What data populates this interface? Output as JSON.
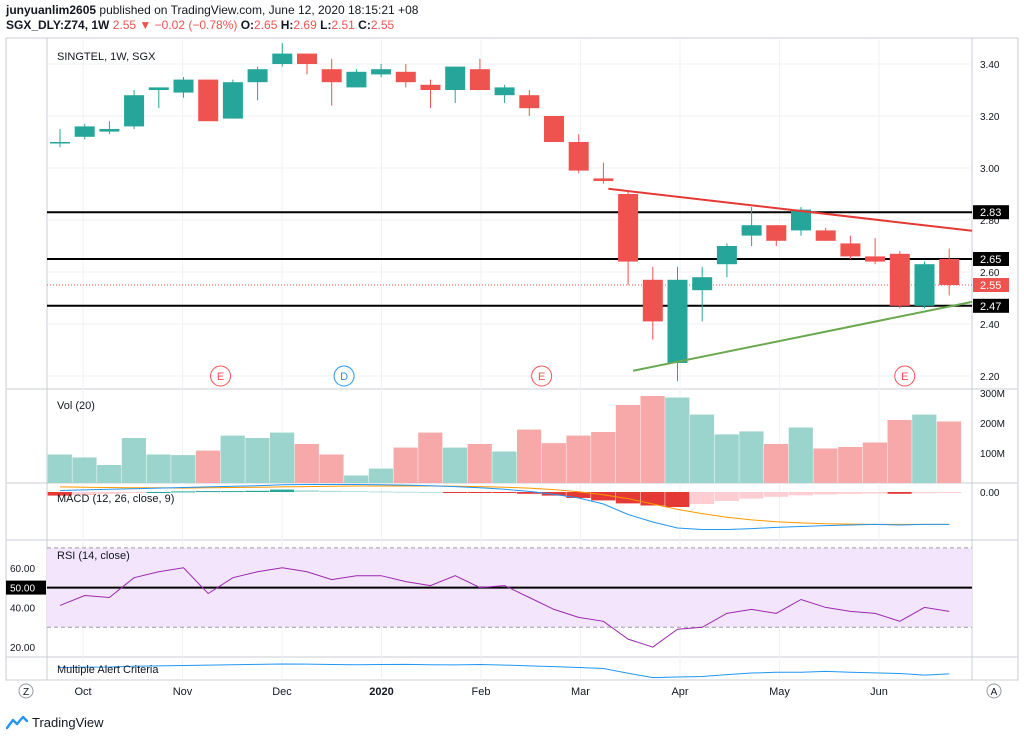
{
  "header": {
    "user": "junyuanlim2605",
    "published_text": "published on TradingView.com, June 12, 2020 18:15:21 +08",
    "symbol": "SGX_DLY:Z74, 1W",
    "last": "2.55",
    "change": "▼ −0.02 (−0.78%)",
    "o_label": "O:",
    "o_value": "2.65",
    "h_label": "H:",
    "h_value": "2.69",
    "l_label": "L:",
    "l_value": "2.51",
    "c_label": "C:",
    "c_value": "2.55"
  },
  "footer": {
    "brand": "TradingView"
  },
  "colors": {
    "up": "#26a69a",
    "down": "#ef5350",
    "up_vol": "#9bd3cd",
    "down_vol": "#f6a9a8",
    "rsi_line": "#9c27b0",
    "rsi_band": "#f3e5fb",
    "macd_line": "#2196f3",
    "signal_line": "#ff9800",
    "support": "#6aa84f",
    "resistance": "#e53935"
  },
  "chart_data": [
    {
      "type": "candlestick",
      "title": "SINGTEL, 1W, SGX",
      "ylim": [
        2.15,
        3.5
      ],
      "yticks": [
        "3.40",
        "3.20",
        "3.00",
        "2.80",
        "2.60",
        "2.40",
        "2.20"
      ],
      "xticks": [
        "Oct",
        "Nov",
        "Dec",
        "2020",
        "Feb",
        "Mar",
        "Apr",
        "May",
        "Jun"
      ],
      "price_labels": [
        {
          "text": "2.83",
          "value": 2.83,
          "style": "black"
        },
        {
          "text": "2.65",
          "value": 2.65,
          "style": "black"
        },
        {
          "text": "2.55",
          "value": 2.55,
          "style": "red"
        },
        {
          "text": "2.47",
          "value": 2.47,
          "style": "black"
        }
      ],
      "horizontal_lines": [
        2.83,
        2.65,
        2.47
      ],
      "current_price": 2.55,
      "trend_lines": [
        {
          "kind": "resistance",
          "from": [
            22.2,
            2.92
          ],
          "to": [
            37.7,
            2.75
          ]
        },
        {
          "kind": "support",
          "from": [
            23.2,
            2.22
          ],
          "to": [
            37.7,
            2.5
          ]
        }
      ],
      "events": [
        {
          "label": "E",
          "x": 6.5,
          "kind": "earnings"
        },
        {
          "label": "D",
          "x": 11.5,
          "kind": "dividend"
        },
        {
          "label": "E",
          "x": 19.5,
          "kind": "earnings"
        },
        {
          "label": "E",
          "x": 34.2,
          "kind": "earnings"
        }
      ],
      "candles": [
        {
          "o": 3.1,
          "h": 3.15,
          "l": 3.08,
          "c": 3.1
        },
        {
          "o": 3.12,
          "h": 3.17,
          "l": 3.11,
          "c": 3.16
        },
        {
          "o": 3.14,
          "h": 3.18,
          "l": 3.13,
          "c": 3.15
        },
        {
          "o": 3.16,
          "h": 3.3,
          "l": 3.15,
          "c": 3.28
        },
        {
          "o": 3.3,
          "h": 3.31,
          "l": 3.23,
          "c": 3.31
        },
        {
          "o": 3.29,
          "h": 3.35,
          "l": 3.27,
          "c": 3.34
        },
        {
          "o": 3.34,
          "h": 3.34,
          "l": 3.18,
          "c": 3.18
        },
        {
          "o": 3.19,
          "h": 3.34,
          "l": 3.19,
          "c": 3.33
        },
        {
          "o": 3.33,
          "h": 3.39,
          "l": 3.26,
          "c": 3.38
        },
        {
          "o": 3.4,
          "h": 3.48,
          "l": 3.39,
          "c": 3.44
        },
        {
          "o": 3.44,
          "h": 3.44,
          "l": 3.36,
          "c": 3.4
        },
        {
          "o": 3.38,
          "h": 3.42,
          "l": 3.24,
          "c": 3.33
        },
        {
          "o": 3.31,
          "h": 3.38,
          "l": 3.31,
          "c": 3.37
        },
        {
          "o": 3.36,
          "h": 3.4,
          "l": 3.35,
          "c": 3.38
        },
        {
          "o": 3.37,
          "h": 3.4,
          "l": 3.31,
          "c": 3.33
        },
        {
          "o": 3.32,
          "h": 3.34,
          "l": 3.23,
          "c": 3.3
        },
        {
          "o": 3.3,
          "h": 3.39,
          "l": 3.25,
          "c": 3.39
        },
        {
          "o": 3.38,
          "h": 3.42,
          "l": 3.3,
          "c": 3.3
        },
        {
          "o": 3.28,
          "h": 3.32,
          "l": 3.25,
          "c": 3.31
        },
        {
          "o": 3.28,
          "h": 3.3,
          "l": 3.2,
          "c": 3.23
        },
        {
          "o": 3.2,
          "h": 3.2,
          "l": 3.1,
          "c": 3.1
        },
        {
          "o": 3.1,
          "h": 3.13,
          "l": 2.98,
          "c": 2.99
        },
        {
          "o": 2.96,
          "h": 3.02,
          "l": 2.94,
          "c": 2.95
        },
        {
          "o": 2.9,
          "h": 2.91,
          "l": 2.55,
          "c": 2.64
        },
        {
          "o": 2.57,
          "h": 2.62,
          "l": 2.34,
          "c": 2.41
        },
        {
          "o": 2.25,
          "h": 2.62,
          "l": 2.18,
          "c": 2.57
        },
        {
          "o": 2.53,
          "h": 2.62,
          "l": 2.41,
          "c": 2.58
        },
        {
          "o": 2.63,
          "h": 2.71,
          "l": 2.58,
          "c": 2.7
        },
        {
          "o": 2.74,
          "h": 2.85,
          "l": 2.7,
          "c": 2.78
        },
        {
          "o": 2.78,
          "h": 2.78,
          "l": 2.7,
          "c": 2.72
        },
        {
          "o": 2.76,
          "h": 2.85,
          "l": 2.74,
          "c": 2.84
        },
        {
          "o": 2.76,
          "h": 2.77,
          "l": 2.72,
          "c": 2.72
        },
        {
          "o": 2.71,
          "h": 2.74,
          "l": 2.65,
          "c": 2.66
        },
        {
          "o": 2.66,
          "h": 2.73,
          "l": 2.63,
          "c": 2.64
        },
        {
          "o": 2.67,
          "h": 2.68,
          "l": 2.46,
          "c": 2.47
        },
        {
          "o": 2.47,
          "h": 2.64,
          "l": 2.46,
          "c": 2.63
        },
        {
          "o": 2.65,
          "h": 2.69,
          "l": 2.51,
          "c": 2.55
        }
      ]
    },
    {
      "type": "bar",
      "title": "Vol (20)",
      "yticks": [
        "300M",
        "200M",
        "100M"
      ],
      "ylim": [
        0,
        300
      ],
      "unit": "M",
      "values": [
        95,
        85,
        60,
        150,
        95,
        93,
        108,
        158,
        150,
        168,
        130,
        95,
        25,
        48,
        118,
        168,
        118,
        130,
        105,
        178,
        133,
        158,
        170,
        260,
        290,
        285,
        228,
        162,
        172,
        130,
        185,
        115,
        120,
        135,
        210,
        228,
        205
      ]
    },
    {
      "type": "line",
      "title": "MACD (12, 26, close, 9)",
      "yticks": [
        "0.00"
      ],
      "ylim": [
        -0.16,
        0.03
      ],
      "histogram": [
        -0.012,
        -0.01,
        -0.006,
        -0.002,
        0.0,
        0.002,
        0.003,
        0.003,
        0.004,
        0.008,
        0.006,
        0.004,
        0.003,
        0.002,
        0.001,
        0.0,
        -0.001,
        -0.001,
        -0.003,
        -0.006,
        -0.012,
        -0.02,
        -0.028,
        -0.038,
        -0.045,
        -0.05,
        -0.04,
        -0.03,
        -0.022,
        -0.016,
        -0.011,
        -0.008,
        -0.006,
        -0.005,
        -0.006,
        -0.004,
        -0.003
      ],
      "macd": [
        0.005,
        0.007,
        0.009,
        0.011,
        0.013,
        0.015,
        0.017,
        0.019,
        0.021,
        0.024,
        0.025,
        0.025,
        0.025,
        0.024,
        0.023,
        0.021,
        0.018,
        0.014,
        0.009,
        0.002,
        -0.008,
        -0.02,
        -0.04,
        -0.075,
        -0.1,
        -0.12,
        -0.125,
        -0.125,
        -0.122,
        -0.118,
        -0.115,
        -0.112,
        -0.11,
        -0.108,
        -0.11,
        -0.108,
        -0.108
      ],
      "signal": [
        0.017,
        0.016,
        0.015,
        0.014,
        0.014,
        0.013,
        0.014,
        0.015,
        0.016,
        0.017,
        0.018,
        0.019,
        0.02,
        0.02,
        0.02,
        0.02,
        0.019,
        0.018,
        0.016,
        0.013,
        0.008,
        0.001,
        -0.009,
        -0.022,
        -0.04,
        -0.058,
        -0.072,
        -0.084,
        -0.093,
        -0.099,
        -0.103,
        -0.106,
        -0.107,
        -0.108,
        -0.108,
        -0.108,
        -0.108
      ]
    },
    {
      "type": "line",
      "title": "RSI (14, close)",
      "yticks": [
        "60.00",
        "40.00",
        "20.00"
      ],
      "ylim": [
        15,
        74
      ],
      "band": [
        30,
        70
      ],
      "midline": {
        "text": "50.00",
        "value": 50
      },
      "values": [
        41,
        46,
        45,
        55,
        58,
        60,
        47,
        55,
        58,
        60,
        58,
        54,
        56,
        56,
        53,
        51,
        56,
        50,
        51,
        45,
        39,
        35,
        33,
        24,
        20,
        29,
        30,
        37,
        39,
        37,
        44,
        40,
        38,
        37,
        33,
        40,
        38
      ]
    },
    {
      "type": "line",
      "title": "Multiple Alert Criteria",
      "ylim": [
        0,
        10
      ],
      "values": [
        5.5,
        5.7,
        5.8,
        6.2,
        6.4,
        6.6,
        6.8,
        7.0,
        7.2,
        7.4,
        7.3,
        7.1,
        7.0,
        7.1,
        7.2,
        7.0,
        6.9,
        7.1,
        6.8,
        6.4,
        6.0,
        5.5,
        5.0,
        2.5,
        0.2,
        0.5,
        0.8,
        1.8,
        2.6,
        3.0,
        3.0,
        3.5,
        3.0,
        2.7,
        2.4,
        1.5,
        2.2
      ]
    }
  ],
  "controls": {
    "left_button": "Z",
    "right_button": "A"
  }
}
